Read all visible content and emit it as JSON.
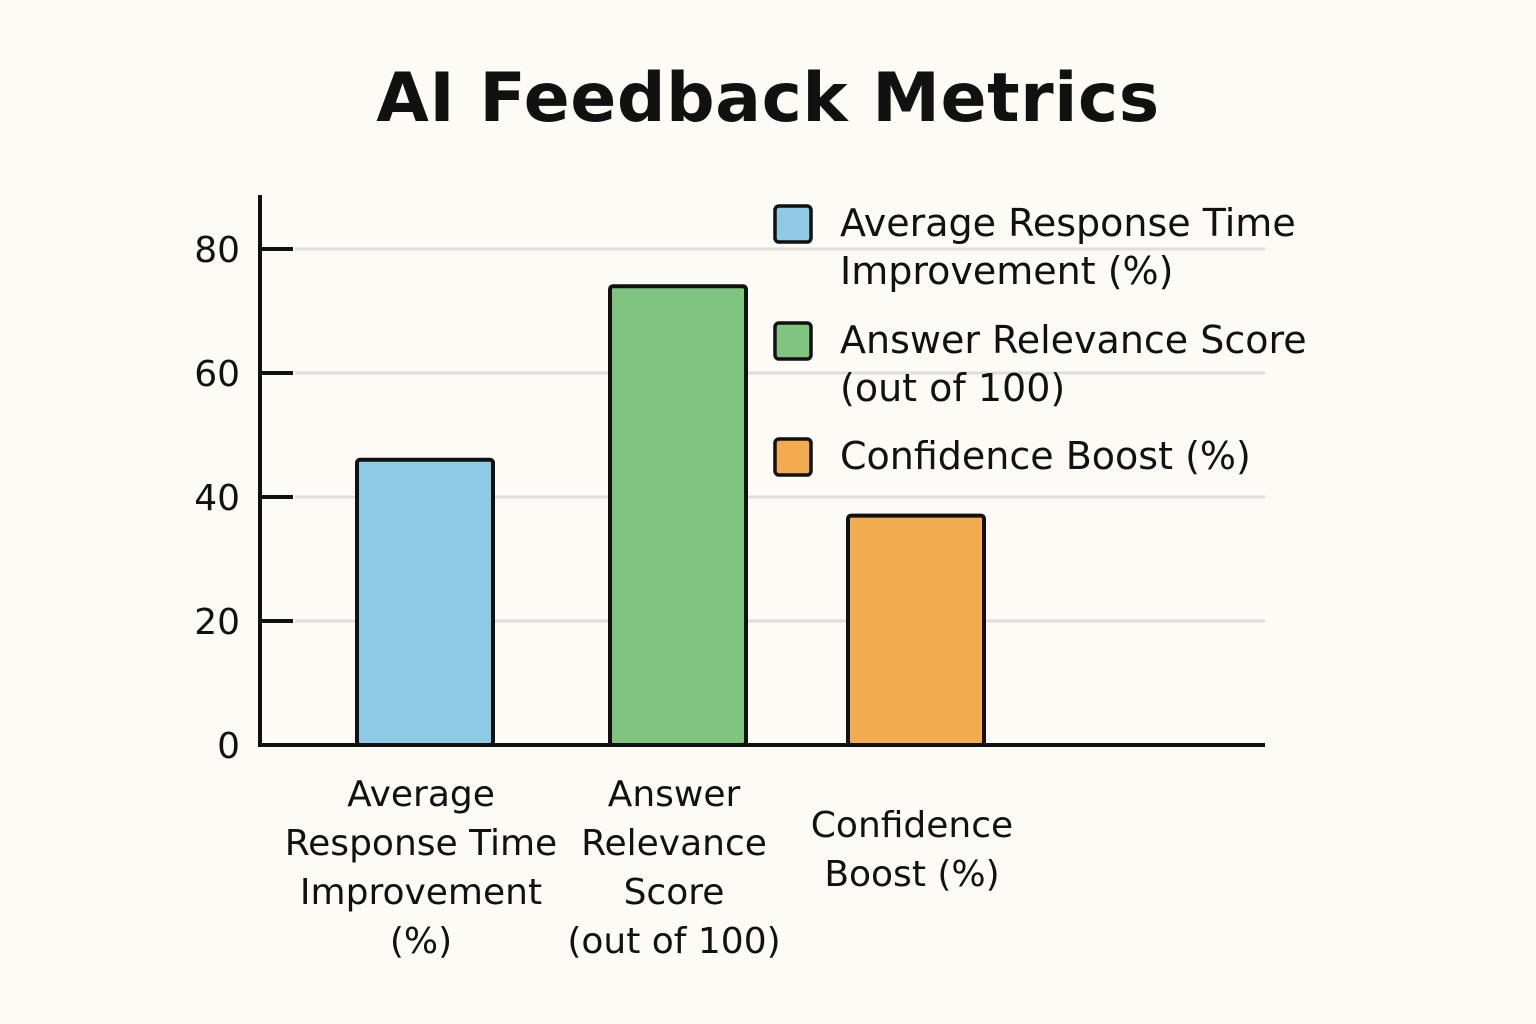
{
  "chart_data": {
    "type": "bar",
    "title": "AI Feedback Metrics",
    "categories": [
      "Average Response Time Improvement (%)",
      "Answer Relevance Score (out of 100)",
      "Confidence Boost (%)"
    ],
    "category_label_lines": [
      [
        "Average",
        "Response Time",
        "Improvement",
        "(%)"
      ],
      [
        "Answer",
        "Relevance",
        "Score",
        "(out of 100)"
      ],
      [
        "Confidence",
        "Boost (%)"
      ]
    ],
    "values": [
      46,
      74,
      37
    ],
    "colors": [
      "#8ecae6",
      "#7fc47f",
      "#f2ab4f"
    ],
    "legend": [
      {
        "lines": [
          "Average Response Time",
          "Improvement (%)"
        ],
        "color": "#8ecae6"
      },
      {
        "lines": [
          "Answer Relevance Score",
          "(out of 100)"
        ],
        "color": "#7fc47f"
      },
      {
        "lines": [
          "Confidence Boost (%)"
        ],
        "color": "#f2ab4f"
      }
    ],
    "legend_position": "top-right",
    "ylim": [
      0,
      88
    ],
    "yticks": [
      0,
      20,
      40,
      60,
      80
    ],
    "grid": true,
    "xlabel": "",
    "ylabel": ""
  }
}
